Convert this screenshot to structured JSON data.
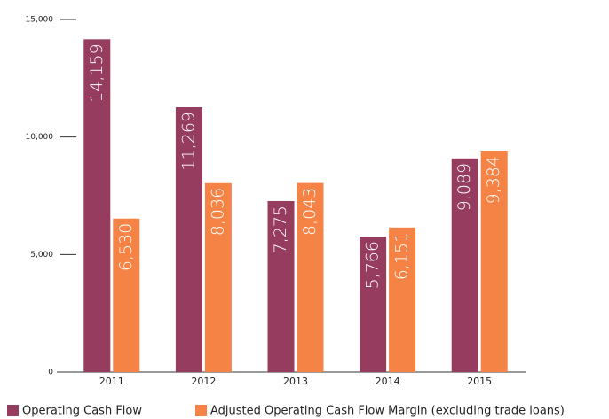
{
  "chart_data": {
    "type": "bar",
    "categories": [
      "2011",
      "2012",
      "2013",
      "2014",
      "2015"
    ],
    "series": [
      {
        "name": "Operating Cash Flow",
        "color": "#963d5f",
        "values": [
          14159,
          11269,
          7275,
          5766,
          9089
        ],
        "value_labels": [
          "14,159",
          "11,269",
          "7,275",
          "5,766",
          "9,089"
        ]
      },
      {
        "name": "Adjusted Operating Cash Flow Margin (excluding trade loans)",
        "color": "#f58345",
        "values": [
          6530,
          8036,
          8043,
          6151,
          9384
        ],
        "value_labels": [
          "6,530",
          "8,036",
          "8,043",
          "6,151",
          "9,384"
        ]
      }
    ],
    "ylim": [
      0,
      15000
    ],
    "yticks": [
      0,
      {
        "value": 5000,
        "label": "5,000"
      },
      {
        "value": 10000,
        "label": "10,000"
      },
      {
        "value": 15000,
        "label": "15,000"
      }
    ]
  }
}
